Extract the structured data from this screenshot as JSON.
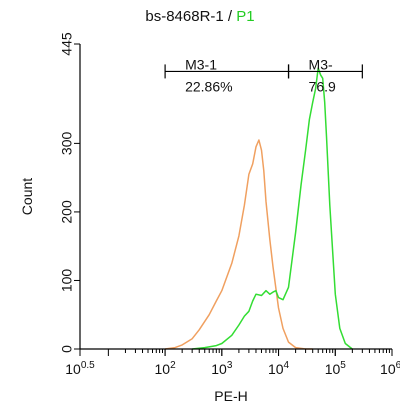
{
  "chart_data": {
    "type": "line",
    "title": "bs-8468R-1",
    "title_separator": " / ",
    "title_gate": "P1",
    "xlabel": "PE-H",
    "ylabel": "Count",
    "x_scale": "log",
    "xlim": [
      3.1623,
      1000000
    ],
    "ylim": [
      0,
      445
    ],
    "x_ticks": [
      {
        "value": 3.1623,
        "base": "10",
        "exp": "0.5"
      },
      {
        "value": 100,
        "base": "10",
        "exp": "2"
      },
      {
        "value": 1000,
        "base": "10",
        "exp": "3"
      },
      {
        "value": 10000,
        "base": "10",
        "exp": "4"
      },
      {
        "value": 100000,
        "base": "10",
        "exp": "5"
      },
      {
        "value": 1000000,
        "base": "10",
        "exp": "6."
      }
    ],
    "y_ticks": [
      0,
      100,
      200,
      300,
      445
    ],
    "colors": {
      "isotype": "#f0a060",
      "sample": "#33dd33",
      "title_gate": "#22cc22",
      "axis": "#000000"
    },
    "series": [
      {
        "color": "#f0a060",
        "x": [
          100,
          150,
          200,
          300,
          400,
          600,
          800,
          1000,
          1500,
          2000,
          2500,
          3000,
          3500,
          4000,
          4500,
          5000,
          5500,
          6000,
          7000,
          8000,
          10000,
          12000,
          15000,
          20000,
          30000,
          40000
        ],
        "y": [
          0,
          2,
          6,
          15,
          28,
          50,
          70,
          85,
          125,
          165,
          210,
          255,
          270,
          295,
          305,
          290,
          260,
          215,
          160,
          120,
          60,
          30,
          10,
          2,
          0,
          0
        ]
      },
      {
        "color": "#33dd33",
        "x": [
          300,
          500,
          800,
          1000,
          1500,
          2000,
          2500,
          3000,
          3500,
          4000,
          5000,
          6000,
          7000,
          8000,
          9000,
          10000,
          12000,
          15000,
          20000,
          25000,
          30000,
          35000,
          40000,
          45000,
          50000,
          55000,
          60000,
          65000,
          70000,
          80000,
          100000,
          120000,
          150000,
          200000
        ],
        "y": [
          0,
          2,
          5,
          8,
          20,
          35,
          48,
          55,
          70,
          80,
          78,
          85,
          80,
          83,
          85,
          75,
          72,
          90,
          170,
          240,
          290,
          335,
          360,
          380,
          410,
          400,
          395,
          360,
          310,
          210,
          80,
          30,
          8,
          0
        ]
      }
    ],
    "gates": [
      {
        "name": "M3-1",
        "percent": "22.86%",
        "x_start": 100,
        "x_end": 15000,
        "y": 405
      },
      {
        "name": "M3-",
        "percent": "76.9",
        "x_start": 15000,
        "x_end": 300000,
        "y": 405
      }
    ]
  }
}
